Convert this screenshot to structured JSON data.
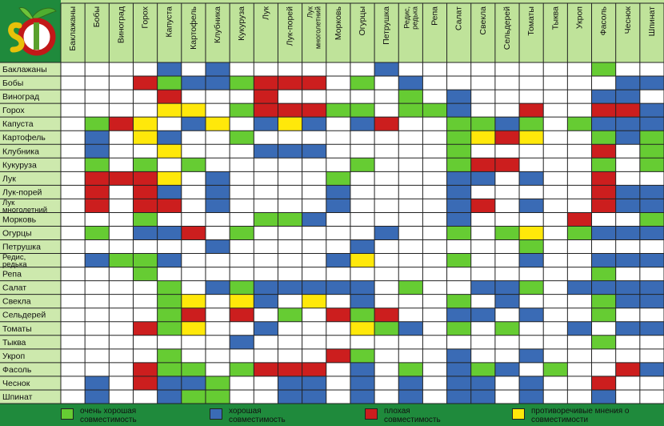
{
  "chart_data": {
    "type": "heatmap",
    "rows": [
      "Баклажаны",
      "Бобы",
      "Виноград",
      "Горох",
      "Капуста",
      "Картофель",
      "Клубника",
      "Кукуруза",
      "Лук",
      "Лук-порей",
      "Лук многолетний",
      "Морковь",
      "Огурцы",
      "Петрушка",
      "Редис, редька",
      "Репа",
      "Салат",
      "Свекла",
      "Сельдерей",
      "Томаты",
      "Тыква",
      "Укроп",
      "Фасоль",
      "Чеснок",
      "Шпинат"
    ],
    "columns": [
      "Баклажаны",
      "Бобы",
      "Виноград",
      "Горох",
      "Капуста",
      "Картофель",
      "Клубника",
      "Кукуруза",
      "Лук",
      "Лук-порей",
      "Лук многолетний",
      "Морковь",
      "Огурцы",
      "Петрушка",
      "Редис, редька",
      "Репа",
      "Салат",
      "Свекла",
      "Сельдерей",
      "Томаты",
      "Тыква",
      "Укроп",
      "Фасоль",
      "Чеснок",
      "Шпинат"
    ],
    "value_codes": {
      "W": "empty",
      "G": "очень хорошая совместимость",
      "B": "хорошая совместимость",
      "R": "плохая совместимость",
      "Y": "противоречивые мнения о совместимости"
    },
    "values": [
      [
        "W",
        "W",
        "W",
        "W",
        "B",
        "W",
        "B",
        "W",
        "W",
        "W",
        "W",
        "W",
        "W",
        "B",
        "W",
        "W",
        "W",
        "W",
        "W",
        "W",
        "W",
        "W",
        "G",
        "W",
        "W"
      ],
      [
        "W",
        "W",
        "W",
        "R",
        "G",
        "B",
        "B",
        "G",
        "R",
        "R",
        "R",
        "W",
        "G",
        "W",
        "B",
        "W",
        "W",
        "W",
        "W",
        "W",
        "W",
        "W",
        "W",
        "B",
        "B"
      ],
      [
        "W",
        "W",
        "W",
        "W",
        "R",
        "W",
        "W",
        "W",
        "R",
        "W",
        "W",
        "W",
        "W",
        "W",
        "G",
        "W",
        "B",
        "W",
        "W",
        "W",
        "W",
        "W",
        "B",
        "B",
        "W"
      ],
      [
        "W",
        "W",
        "W",
        "W",
        "Y",
        "Y",
        "W",
        "G",
        "R",
        "R",
        "R",
        "G",
        "G",
        "W",
        "G",
        "G",
        "B",
        "W",
        "W",
        "R",
        "W",
        "W",
        "R",
        "R",
        "B"
      ],
      [
        "W",
        "G",
        "R",
        "Y",
        "W",
        "B",
        "Y",
        "W",
        "B",
        "Y",
        "B",
        "W",
        "B",
        "R",
        "W",
        "W",
        "G",
        "G",
        "B",
        "G",
        "W",
        "G",
        "B",
        "B",
        "B"
      ],
      [
        "W",
        "B",
        "W",
        "Y",
        "B",
        "W",
        "W",
        "G",
        "W",
        "W",
        "W",
        "W",
        "W",
        "W",
        "W",
        "W",
        "G",
        "Y",
        "R",
        "Y",
        "W",
        "W",
        "G",
        "B",
        "G"
      ],
      [
        "W",
        "B",
        "W",
        "W",
        "Y",
        "W",
        "W",
        "W",
        "B",
        "B",
        "B",
        "W",
        "W",
        "W",
        "W",
        "W",
        "G",
        "W",
        "W",
        "W",
        "W",
        "W",
        "R",
        "W",
        "G"
      ],
      [
        "W",
        "G",
        "W",
        "G",
        "W",
        "G",
        "W",
        "W",
        "W",
        "W",
        "W",
        "W",
        "G",
        "W",
        "W",
        "W",
        "G",
        "R",
        "R",
        "W",
        "W",
        "W",
        "G",
        "W",
        "G"
      ],
      [
        "W",
        "R",
        "R",
        "R",
        "Y",
        "W",
        "B",
        "W",
        "W",
        "W",
        "W",
        "G",
        "W",
        "W",
        "W",
        "W",
        "B",
        "B",
        "W",
        "B",
        "W",
        "W",
        "R",
        "W",
        "W"
      ],
      [
        "W",
        "R",
        "W",
        "R",
        "B",
        "W",
        "B",
        "W",
        "W",
        "W",
        "W",
        "B",
        "W",
        "W",
        "W",
        "W",
        "B",
        "W",
        "W",
        "W",
        "W",
        "W",
        "R",
        "B",
        "B"
      ],
      [
        "W",
        "R",
        "W",
        "R",
        "R",
        "W",
        "B",
        "W",
        "W",
        "W",
        "W",
        "B",
        "W",
        "W",
        "W",
        "W",
        "B",
        "R",
        "W",
        "B",
        "W",
        "W",
        "R",
        "B",
        "B"
      ],
      [
        "W",
        "W",
        "W",
        "G",
        "W",
        "W",
        "W",
        "W",
        "G",
        "G",
        "B",
        "W",
        "W",
        "W",
        "W",
        "W",
        "B",
        "W",
        "W",
        "W",
        "W",
        "R",
        "W",
        "W",
        "G"
      ],
      [
        "W",
        "G",
        "W",
        "B",
        "B",
        "R",
        "W",
        "G",
        "W",
        "W",
        "W",
        "W",
        "W",
        "B",
        "W",
        "W",
        "G",
        "W",
        "G",
        "Y",
        "W",
        "G",
        "B",
        "B",
        "B"
      ],
      [
        "W",
        "W",
        "W",
        "W",
        "W",
        "W",
        "B",
        "W",
        "W",
        "W",
        "W",
        "W",
        "B",
        "W",
        "W",
        "W",
        "W",
        "W",
        "W",
        "G",
        "W",
        "W",
        "W",
        "W",
        "W"
      ],
      [
        "W",
        "B",
        "G",
        "G",
        "B",
        "W",
        "W",
        "W",
        "W",
        "W",
        "W",
        "B",
        "Y",
        "W",
        "W",
        "W",
        "G",
        "W",
        "W",
        "B",
        "W",
        "W",
        "B",
        "B",
        "B"
      ],
      [
        "W",
        "W",
        "W",
        "G",
        "W",
        "W",
        "W",
        "W",
        "W",
        "W",
        "W",
        "W",
        "W",
        "W",
        "W",
        "W",
        "W",
        "W",
        "W",
        "W",
        "W",
        "W",
        "G",
        "W",
        "W"
      ],
      [
        "W",
        "W",
        "W",
        "W",
        "G",
        "W",
        "B",
        "G",
        "B",
        "B",
        "B",
        "B",
        "B",
        "W",
        "G",
        "W",
        "W",
        "B",
        "B",
        "G",
        "W",
        "B",
        "B",
        "B",
        "B"
      ],
      [
        "W",
        "W",
        "W",
        "W",
        "G",
        "Y",
        "W",
        "Y",
        "B",
        "W",
        "Y",
        "W",
        "B",
        "W",
        "W",
        "W",
        "G",
        "W",
        "B",
        "W",
        "W",
        "W",
        "G",
        "B",
        "B"
      ],
      [
        "W",
        "W",
        "W",
        "W",
        "G",
        "R",
        "W",
        "R",
        "W",
        "G",
        "W",
        "R",
        "G",
        "R",
        "W",
        "W",
        "B",
        "B",
        "W",
        "B",
        "W",
        "W",
        "G",
        "W",
        "W"
      ],
      [
        "W",
        "W",
        "W",
        "R",
        "G",
        "Y",
        "W",
        "W",
        "B",
        "W",
        "W",
        "W",
        "Y",
        "G",
        "B",
        "W",
        "G",
        "W",
        "G",
        "W",
        "W",
        "B",
        "W",
        "B",
        "B"
      ],
      [
        "W",
        "W",
        "W",
        "W",
        "W",
        "W",
        "W",
        "B",
        "W",
        "W",
        "W",
        "W",
        "W",
        "W",
        "W",
        "W",
        "W",
        "W",
        "W",
        "W",
        "W",
        "W",
        "G",
        "W",
        "W"
      ],
      [
        "W",
        "W",
        "W",
        "W",
        "G",
        "W",
        "W",
        "W",
        "W",
        "W",
        "W",
        "R",
        "G",
        "W",
        "W",
        "W",
        "B",
        "W",
        "W",
        "B",
        "W",
        "W",
        "W",
        "W",
        "W"
      ],
      [
        "W",
        "W",
        "W",
        "R",
        "G",
        "G",
        "W",
        "G",
        "R",
        "R",
        "R",
        "W",
        "B",
        "W",
        "G",
        "W",
        "B",
        "G",
        "B",
        "W",
        "G",
        "W",
        "W",
        "R",
        "B"
      ],
      [
        "W",
        "B",
        "W",
        "R",
        "B",
        "B",
        "G",
        "W",
        "W",
        "B",
        "B",
        "W",
        "B",
        "W",
        "B",
        "W",
        "B",
        "B",
        "W",
        "B",
        "W",
        "W",
        "R",
        "W",
        "W"
      ],
      [
        "W",
        "B",
        "W",
        "W",
        "B",
        "G",
        "G",
        "W",
        "W",
        "B",
        "B",
        "W",
        "B",
        "W",
        "B",
        "W",
        "B",
        "B",
        "W",
        "B",
        "W",
        "W",
        "B",
        "W",
        "W"
      ]
    ],
    "colors": {
      "G": "#66cc33",
      "B": "#3a6bb5",
      "R": "#cc1e1e",
      "Y": "#ffe80a",
      "W": "#ffffff"
    },
    "legend": [
      {
        "code": "G",
        "label": "очень хорошая совместимость"
      },
      {
        "code": "B",
        "label": "хорошая совместимость"
      },
      {
        "code": "R",
        "label": "плохая совместимость"
      },
      {
        "code": "Y",
        "label": "противоречивые мнения о совместимости"
      }
    ]
  },
  "style": {
    "background": "#1f8a3c",
    "header_bg": "#bfe39a",
    "label_bg": "#cde9ad",
    "grid_line": "#222222"
  }
}
